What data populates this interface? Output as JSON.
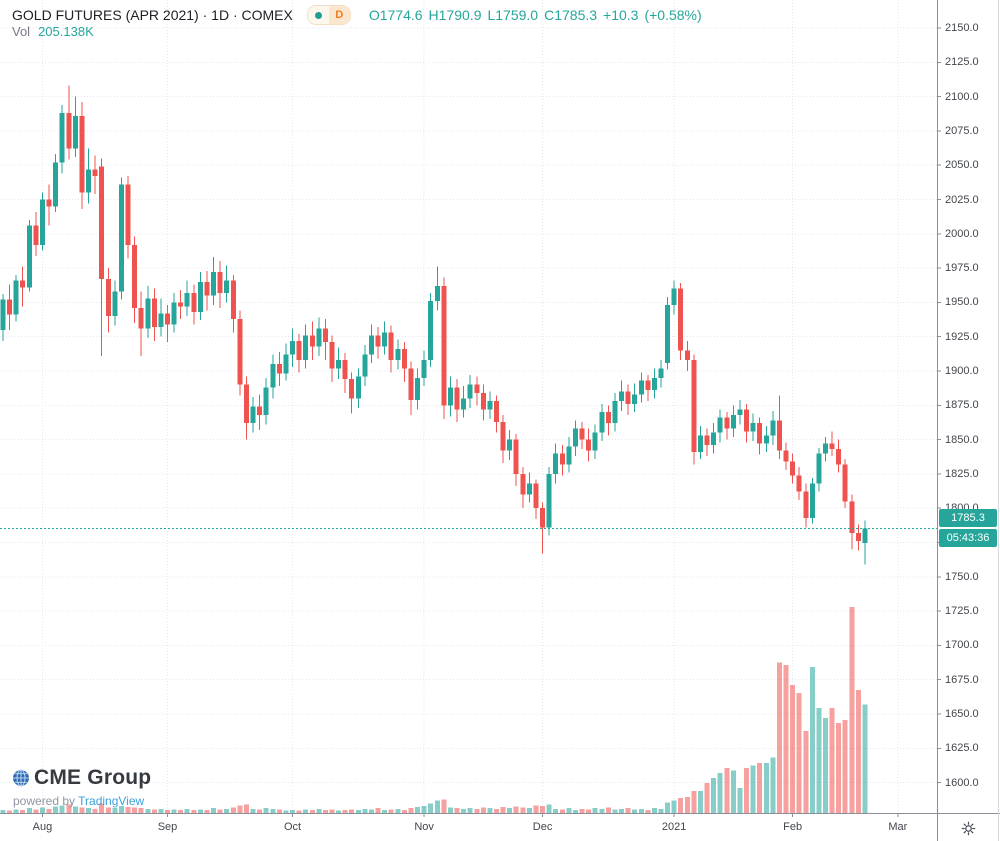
{
  "header": {
    "title": "GOLD FUTURES (APR 2021) · 1D · COMEX",
    "interval_badge": {
      "label": "D",
      "dot_color": "#1f9e8e",
      "bg": "#fbe7cd",
      "fg": "#f07c1a"
    },
    "ohlc": {
      "o_label": "O1774.6",
      "h_label": "H1790.9",
      "l_label": "L1759.0",
      "c_label": "C1785.3",
      "change": "+10.3",
      "change_pct": "(+0.58%)"
    },
    "volume_label": "Vol",
    "volume_value": "205.138K"
  },
  "price_axis": {
    "ticks": [
      "2150.0",
      "2125.0",
      "2100.0",
      "2075.0",
      "2050.0",
      "2025.0",
      "2000.0",
      "1975.0",
      "1950.0",
      "1925.0",
      "1900.0",
      "1875.0",
      "1850.0",
      "1825.0",
      "1800.0",
      "1750.0",
      "1725.0",
      "1700.0",
      "1675.0",
      "1650.0",
      "1625.0",
      "1600.0"
    ],
    "last_price_badge": "1785.3",
    "countdown_badge": "05:43:36"
  },
  "footer": {
    "logo_text": "CME Group",
    "powered_by": "powered by ",
    "brand": "TradingView"
  },
  "chart_data": {
    "type": "candlestick",
    "title": "GOLD FUTURES (APR 2021)",
    "interval": "1D",
    "exchange": "COMEX",
    "last_bar": {
      "open": 1774.6,
      "high": 1790.9,
      "low": 1759.0,
      "close": 1785.3,
      "change": 10.3,
      "change_pct": 0.58,
      "volume_k": 205.138,
      "countdown": "05:43:36"
    },
    "price_axis_range": {
      "min": 1600,
      "max": 2150,
      "step": 25
    },
    "grid": true,
    "colors": {
      "up": "#26a69a",
      "down": "#ef5350",
      "vol_up": "rgba(38,166,154,0.55)",
      "vol_down": "rgba(239,83,80,0.55)",
      "tv_blue": "#3ba2db"
    },
    "month_ticks": [
      {
        "label": "Aug",
        "index": 6
      },
      {
        "label": "Sep",
        "index": 25
      },
      {
        "label": "Oct",
        "index": 44
      },
      {
        "label": "Nov",
        "index": 64
      },
      {
        "label": "Dec",
        "index": 82
      },
      {
        "label": "2021",
        "index": 102
      },
      {
        "label": "Feb",
        "index": 120
      },
      {
        "label": "Mar",
        "index": 136
      }
    ],
    "candles_ohlc": [
      [
        1930,
        1956,
        1922,
        1952
      ],
      [
        1952,
        1963,
        1930,
        1941
      ],
      [
        1941,
        1970,
        1936,
        1966
      ],
      [
        1966,
        1976,
        1947,
        1961
      ],
      [
        1961,
        2010,
        1958,
        2006
      ],
      [
        2006,
        2016,
        1984,
        1992
      ],
      [
        1992,
        2030,
        1988,
        2025
      ],
      [
        2025,
        2036,
        2006,
        2020
      ],
      [
        2020,
        2058,
        2016,
        2052
      ],
      [
        2052,
        2094,
        2044,
        2088
      ],
      [
        2088,
        2108,
        2054,
        2062
      ],
      [
        2062,
        2100,
        2056,
        2086
      ],
      [
        2086,
        2096,
        2018,
        2030
      ],
      [
        2030,
        2062,
        2022,
        2047
      ],
      [
        2047,
        2057,
        2029,
        2042
      ],
      [
        2049,
        2055,
        1911,
        1967
      ],
      [
        1967,
        1975,
        1928,
        1940
      ],
      [
        1940,
        1966,
        1933,
        1958
      ],
      [
        1958,
        2041,
        1952,
        2036
      ],
      [
        2036,
        2042,
        1982,
        1992
      ],
      [
        1992,
        1998,
        1935,
        1946
      ],
      [
        1946,
        1958,
        1911,
        1931
      ],
      [
        1931,
        1962,
        1924,
        1953
      ],
      [
        1953,
        1960,
        1922,
        1932
      ],
      [
        1932,
        1953,
        1925,
        1942
      ],
      [
        1942,
        1948,
        1921,
        1934
      ],
      [
        1934,
        1957,
        1928,
        1950
      ],
      [
        1950,
        1959,
        1938,
        1947
      ],
      [
        1947,
        1966,
        1940,
        1957
      ],
      [
        1957,
        1963,
        1934,
        1943
      ],
      [
        1943,
        1972,
        1937,
        1965
      ],
      [
        1965,
        1973,
        1944,
        1955
      ],
      [
        1955,
        1983,
        1948,
        1972
      ],
      [
        1972,
        1980,
        1946,
        1957
      ],
      [
        1957,
        1977,
        1950,
        1966
      ],
      [
        1966,
        1970,
        1928,
        1938
      ],
      [
        1938,
        1944,
        1882,
        1890
      ],
      [
        1890,
        1896,
        1850,
        1862
      ],
      [
        1862,
        1881,
        1855,
        1874
      ],
      [
        1874,
        1883,
        1857,
        1868
      ],
      [
        1868,
        1895,
        1861,
        1888
      ],
      [
        1888,
        1912,
        1880,
        1905
      ],
      [
        1905,
        1914,
        1889,
        1898
      ],
      [
        1898,
        1920,
        1893,
        1912
      ],
      [
        1912,
        1931,
        1903,
        1922
      ],
      [
        1922,
        1927,
        1899,
        1908
      ],
      [
        1908,
        1934,
        1902,
        1926
      ],
      [
        1926,
        1936,
        1908,
        1918
      ],
      [
        1918,
        1939,
        1911,
        1931
      ],
      [
        1931,
        1938,
        1908,
        1921
      ],
      [
        1921,
        1926,
        1892,
        1902
      ],
      [
        1902,
        1917,
        1894,
        1908
      ],
      [
        1908,
        1913,
        1884,
        1894
      ],
      [
        1894,
        1899,
        1869,
        1880
      ],
      [
        1880,
        1902,
        1873,
        1896
      ],
      [
        1896,
        1919,
        1889,
        1912
      ],
      [
        1912,
        1934,
        1906,
        1926
      ],
      [
        1926,
        1932,
        1909,
        1918
      ],
      [
        1918,
        1936,
        1912,
        1928
      ],
      [
        1928,
        1933,
        1899,
        1908
      ],
      [
        1908,
        1923,
        1901,
        1916
      ],
      [
        1916,
        1921,
        1892,
        1902
      ],
      [
        1902,
        1907,
        1868,
        1879
      ],
      [
        1879,
        1902,
        1872,
        1895
      ],
      [
        1895,
        1915,
        1889,
        1908
      ],
      [
        1908,
        1957,
        1903,
        1951
      ],
      [
        1951,
        1976,
        1944,
        1962
      ],
      [
        1962,
        1968,
        1865,
        1875
      ],
      [
        1875,
        1896,
        1867,
        1888
      ],
      [
        1888,
        1894,
        1863,
        1872
      ],
      [
        1872,
        1889,
        1866,
        1880
      ],
      [
        1880,
        1897,
        1873,
        1890
      ],
      [
        1890,
        1896,
        1875,
        1884
      ],
      [
        1884,
        1890,
        1864,
        1872
      ],
      [
        1872,
        1885,
        1865,
        1878
      ],
      [
        1878,
        1882,
        1855,
        1863
      ],
      [
        1863,
        1868,
        1833,
        1842
      ],
      [
        1842,
        1857,
        1835,
        1850
      ],
      [
        1850,
        1854,
        1816,
        1825
      ],
      [
        1825,
        1830,
        1800,
        1810
      ],
      [
        1810,
        1826,
        1804,
        1818
      ],
      [
        1818,
        1821,
        1792,
        1800
      ],
      [
        1800,
        1804,
        1767,
        1786
      ],
      [
        1786,
        1830,
        1780,
        1825
      ],
      [
        1825,
        1847,
        1818,
        1840
      ],
      [
        1840,
        1846,
        1824,
        1832
      ],
      [
        1832,
        1852,
        1826,
        1845
      ],
      [
        1845,
        1864,
        1838,
        1858
      ],
      [
        1858,
        1863,
        1843,
        1850
      ],
      [
        1850,
        1858,
        1834,
        1842
      ],
      [
        1842,
        1861,
        1836,
        1855
      ],
      [
        1855,
        1876,
        1849,
        1870
      ],
      [
        1870,
        1875,
        1853,
        1862
      ],
      [
        1862,
        1884,
        1856,
        1878
      ],
      [
        1878,
        1893,
        1871,
        1885
      ],
      [
        1885,
        1890,
        1868,
        1876
      ],
      [
        1876,
        1891,
        1870,
        1883
      ],
      [
        1883,
        1899,
        1877,
        1893
      ],
      [
        1893,
        1897,
        1878,
        1886
      ],
      [
        1886,
        1902,
        1880,
        1895
      ],
      [
        1895,
        1908,
        1888,
        1902
      ],
      [
        1906,
        1954,
        1901,
        1948
      ],
      [
        1948,
        1966,
        1941,
        1960
      ],
      [
        1960,
        1964,
        1908,
        1915
      ],
      [
        1915,
        1922,
        1900,
        1908
      ],
      [
        1908,
        1912,
        1832,
        1841
      ],
      [
        1841,
        1860,
        1836,
        1853
      ],
      [
        1853,
        1858,
        1838,
        1846
      ],
      [
        1846,
        1862,
        1840,
        1855
      ],
      [
        1855,
        1872,
        1848,
        1866
      ],
      [
        1866,
        1870,
        1850,
        1858
      ],
      [
        1858,
        1875,
        1852,
        1868
      ],
      [
        1868,
        1879,
        1861,
        1872
      ],
      [
        1872,
        1876,
        1848,
        1856
      ],
      [
        1856,
        1869,
        1849,
        1862
      ],
      [
        1862,
        1866,
        1839,
        1847
      ],
      [
        1847,
        1860,
        1841,
        1853
      ],
      [
        1853,
        1871,
        1846,
        1864
      ],
      [
        1864,
        1882,
        1836,
        1842
      ],
      [
        1842,
        1848,
        1828,
        1834
      ],
      [
        1834,
        1840,
        1818,
        1824
      ],
      [
        1824,
        1830,
        1806,
        1812
      ],
      [
        1812,
        1818,
        1786,
        1793
      ],
      [
        1793,
        1822,
        1789,
        1818
      ],
      [
        1818,
        1844,
        1812,
        1840
      ],
      [
        1840,
        1852,
        1834,
        1847
      ],
      [
        1847,
        1856,
        1838,
        1843
      ],
      [
        1843,
        1850,
        1826,
        1832
      ],
      [
        1832,
        1836,
        1800,
        1805
      ],
      [
        1805,
        1810,
        1770,
        1782
      ],
      [
        1782,
        1788,
        1769,
        1776
      ],
      [
        1774.6,
        1790.9,
        1759.0,
        1785.3
      ]
    ],
    "volumes_k": [
      6,
      5,
      7,
      6,
      9,
      7,
      10,
      8,
      12,
      14,
      16,
      12,
      10,
      9,
      8,
      18,
      10,
      9,
      13,
      11,
      10,
      9,
      8,
      7,
      8,
      6,
      7,
      6,
      8,
      6,
      7,
      6,
      9,
      7,
      8,
      10,
      14,
      16,
      8,
      7,
      9,
      8,
      7,
      5,
      6,
      5,
      7,
      6,
      8,
      6,
      7,
      5,
      6,
      7,
      6,
      8,
      7,
      9,
      6,
      7,
      8,
      6,
      9,
      11,
      13,
      18,
      24,
      26,
      10,
      9,
      8,
      9,
      8,
      10,
      9,
      8,
      11,
      9,
      12,
      10,
      9,
      14,
      13,
      16,
      8,
      7,
      9,
      6,
      8,
      7,
      9,
      8,
      10,
      7,
      8,
      9,
      7,
      8,
      6,
      9,
      8,
      20,
      24,
      28,
      30,
      42,
      42,
      57,
      66,
      76,
      85,
      80,
      47,
      85,
      90,
      95,
      95,
      105,
      285,
      280,
      242,
      227,
      155,
      276,
      199,
      180,
      199,
      170,
      176,
      390,
      233,
      205.138
    ]
  }
}
